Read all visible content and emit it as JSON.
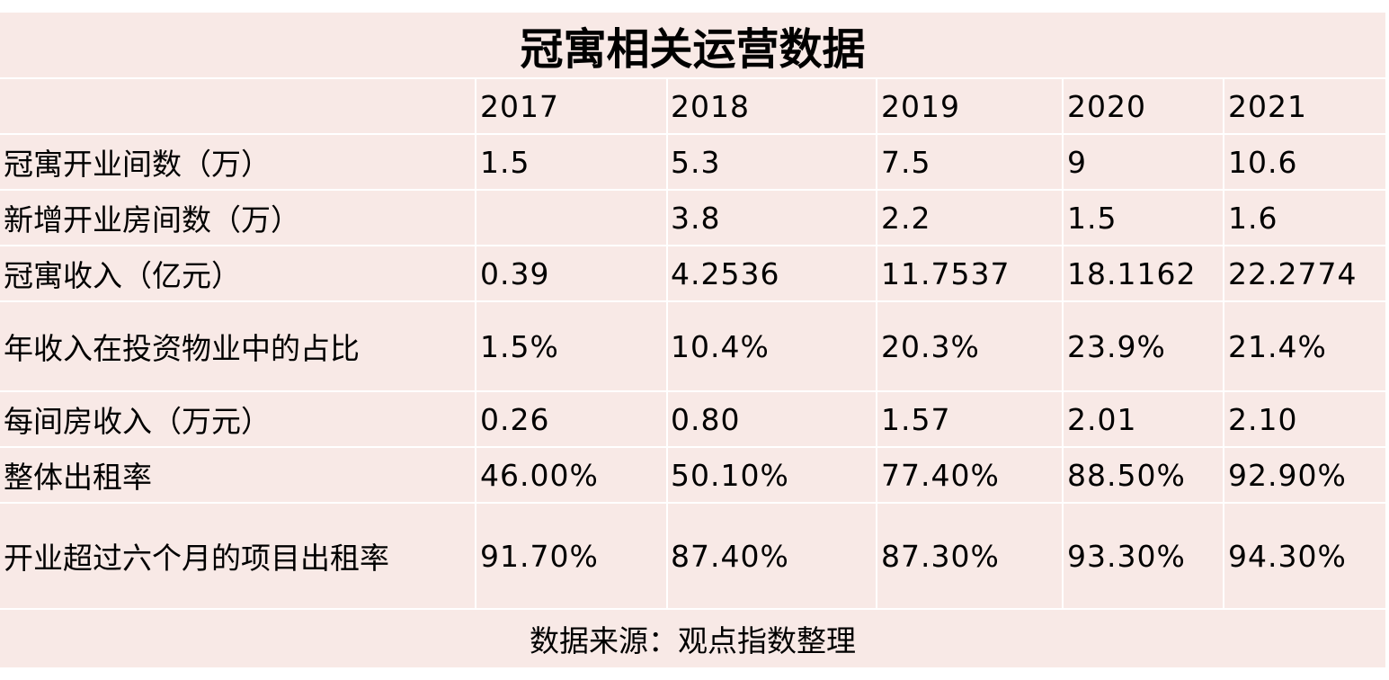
{
  "chart_data": {
    "type": "table",
    "title": "冠寓相关运营数据",
    "columns": [
      "2017",
      "2018",
      "2019",
      "2020",
      "2021"
    ],
    "rows": [
      {
        "label": "冠寓开业间数（万）",
        "values": [
          "1.5",
          "5.3",
          "7.5",
          "9",
          "10.6"
        ]
      },
      {
        "label": "新增开业房间数（万）",
        "values": [
          "",
          "3.8",
          "2.2",
          "1.5",
          "1.6"
        ]
      },
      {
        "label": "冠寓收入（亿元）",
        "values": [
          "0.39",
          "4.2536",
          "11.7537",
          "18.1162",
          "22.2774"
        ]
      },
      {
        "label": "年收入在投资物业中的占比",
        "values": [
          "1.5%",
          "10.4%",
          "20.3%",
          "23.9%",
          "21.4%"
        ]
      },
      {
        "label": "每间房收入（万元）",
        "values": [
          "0.26",
          "0.80",
          "1.57",
          "2.01",
          "2.10"
        ]
      },
      {
        "label": "整体出租率",
        "values": [
          "46.00%",
          "50.10%",
          "77.40%",
          "88.50%",
          "92.90%"
        ]
      },
      {
        "label": "开业超过六个月的项目出租率",
        "values": [
          "91.70%",
          "87.40%",
          "87.30%",
          "93.30%",
          "94.30%"
        ]
      }
    ],
    "source": "数据来源：观点指数整理"
  },
  "colors": {
    "background": "#f8e9e6",
    "gridline": "#ffffff",
    "text": "#000000"
  }
}
